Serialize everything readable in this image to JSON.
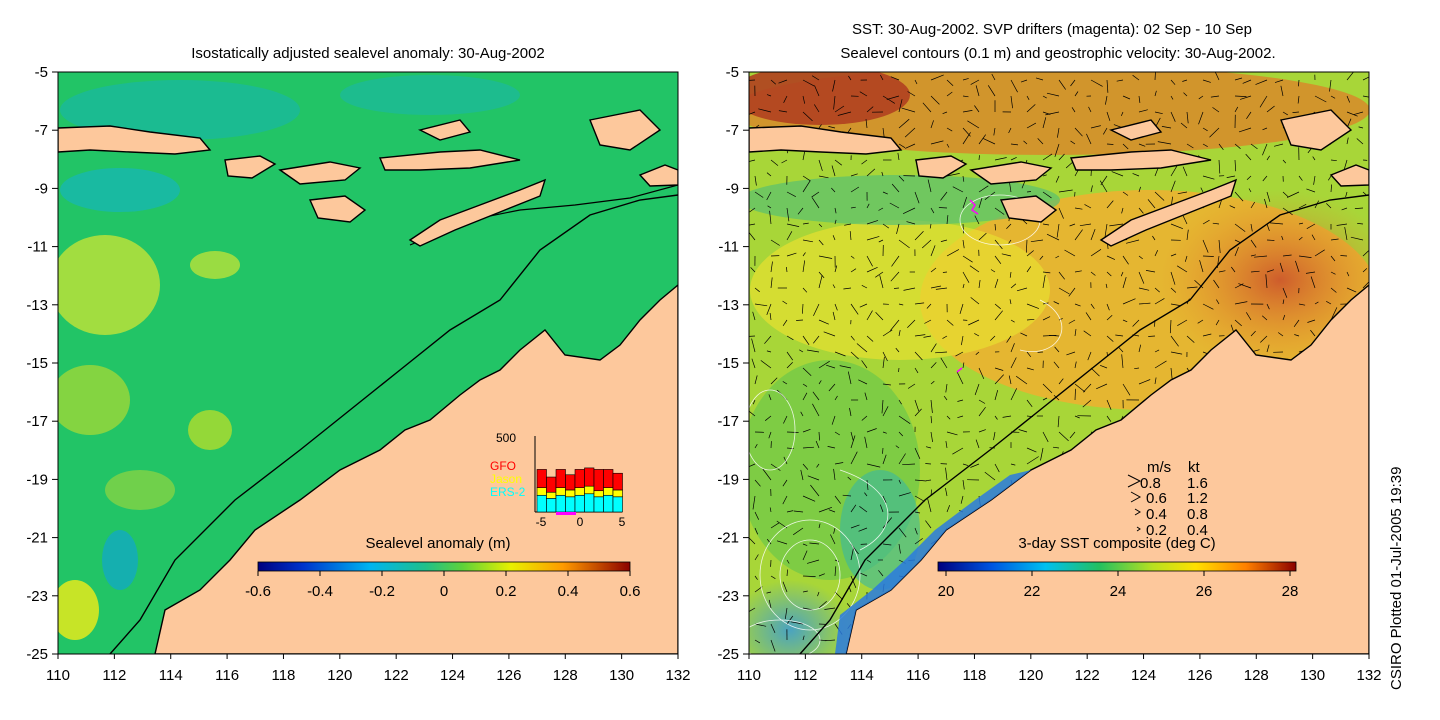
{
  "left_map": {
    "title": "Isostatically adjusted sealevel anomaly: 30-Aug-2002",
    "colorbar": {
      "title": "Sealevel anomaly (m)",
      "ticks": [
        "-0.6",
        "-0.4",
        "-0.2",
        "0",
        "0.2",
        "0.4",
        "0.6"
      ],
      "range": [
        -0.6,
        0.6
      ]
    },
    "inset": {
      "ymax_label": "500",
      "legend": [
        {
          "label": "GFO",
          "color": "#ff0000"
        },
        {
          "label": "Jason",
          "color": "#ffff00"
        },
        {
          "label": "ERS-2",
          "color": "#00ffff"
        }
      ],
      "x_ticks": [
        "-5",
        "0",
        "5"
      ],
      "ylim": [
        0,
        500
      ],
      "bars": [
        {
          "ers2": 110,
          "jason": 50,
          "gfo": 120
        },
        {
          "ers2": 90,
          "jason": 40,
          "gfo": 100
        },
        {
          "ers2": 110,
          "jason": 50,
          "gfo": 120
        },
        {
          "ers2": 100,
          "jason": 45,
          "gfo": 100
        },
        {
          "ers2": 110,
          "jason": 50,
          "gfo": 120
        },
        {
          "ers2": 120,
          "jason": 50,
          "gfo": 120
        },
        {
          "ers2": 100,
          "jason": 40,
          "gfo": 140
        },
        {
          "ers2": 110,
          "jason": 50,
          "gfo": 120
        },
        {
          "ers2": 100,
          "jason": 45,
          "gfo": 110
        }
      ]
    }
  },
  "right_map": {
    "title_line1": "SST: 30-Aug-2002. SVP drifters (magenta): 02 Sep - 10 Sep",
    "title_line2": "Sealevel contours (0.1 m) and geostrophic velocity: 30-Aug-2002.",
    "colorbar": {
      "title": "3-day SST composite (deg C)",
      "ticks": [
        "20",
        "22",
        "24",
        "26",
        "28"
      ],
      "range": [
        20,
        28
      ]
    },
    "velocity_key": {
      "header_ms": "m/s",
      "header_kt": "kt",
      "rows": [
        {
          "ms": "0.8",
          "kt": "1.6"
        },
        {
          "ms": "0.6",
          "kt": "1.2"
        },
        {
          "ms": "0.4",
          "kt": "0.8"
        },
        {
          "ms": "0.2",
          "kt": "0.4"
        }
      ]
    }
  },
  "axes": {
    "lat_ticks": [
      "-5",
      "-7",
      "-9",
      "-11",
      "-13",
      "-15",
      "-17",
      "-19",
      "-21",
      "-23",
      "-25"
    ],
    "lon_ticks": [
      "110",
      "112",
      "114",
      "116",
      "118",
      "120",
      "122",
      "124",
      "126",
      "128",
      "130",
      "132"
    ],
    "lon_range": [
      110,
      132
    ],
    "lat_range": [
      -25,
      -5
    ]
  },
  "footer": "CSIRO Plotted 01-Jul-2005 19:39",
  "colors": {
    "land": "#fdc89c",
    "ocean_left": "#22c466",
    "ocean_right": "#a8d638",
    "coast": "#000000"
  }
}
